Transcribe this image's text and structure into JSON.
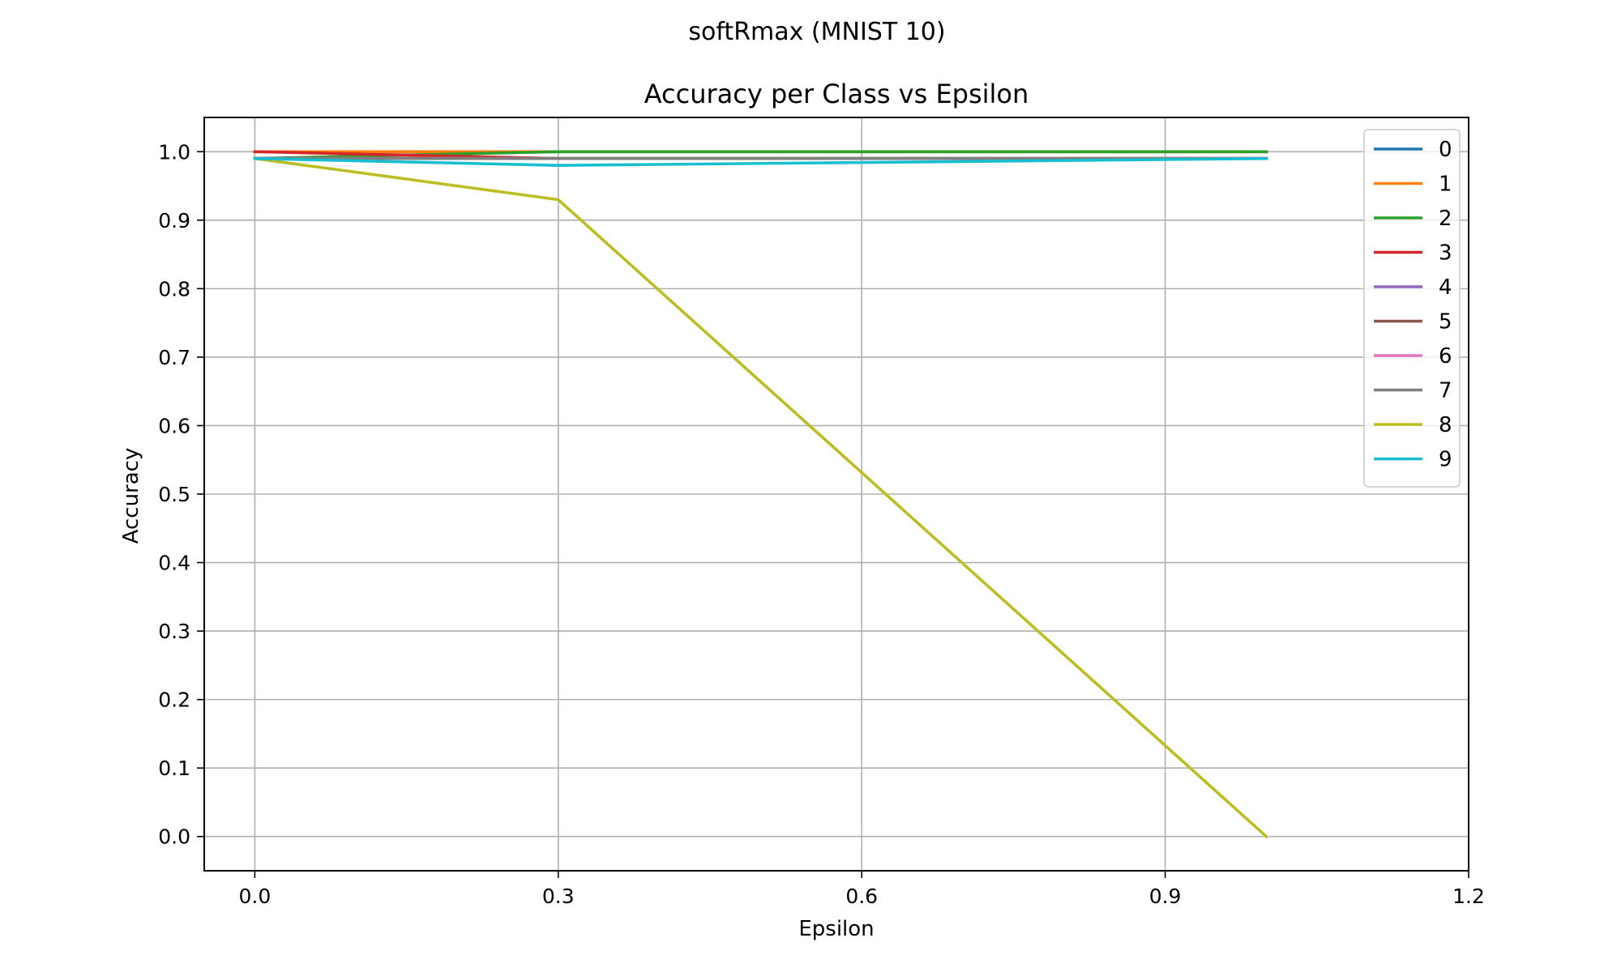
{
  "figure": {
    "suptitle": "softRmax (MNIST 10)"
  },
  "chart_data": {
    "type": "line",
    "title": "Accuracy per Class vs Epsilon",
    "xlabel": "Epsilon",
    "ylabel": "Accuracy",
    "xlim": [
      -0.05,
      1.2
    ],
    "ylim": [
      -0.05,
      1.05
    ],
    "xticks": [
      0.0,
      0.3,
      0.6,
      0.9,
      1.2
    ],
    "xtick_labels": [
      "0.0",
      "0.3",
      "0.6",
      "0.9",
      "1.2"
    ],
    "yticks": [
      0.0,
      0.1,
      0.2,
      0.3,
      0.4,
      0.5,
      0.6,
      0.7,
      0.8,
      0.9,
      1.0
    ],
    "ytick_labels": [
      "0.0",
      "0.1",
      "0.2",
      "0.3",
      "0.4",
      "0.5",
      "0.6",
      "0.7",
      "0.8",
      "0.9",
      "1.0"
    ],
    "grid": true,
    "legend_position": "top-right",
    "x": [
      0.0,
      0.3,
      1.0
    ],
    "series": [
      {
        "name": "0",
        "color": "#1f77b4",
        "values": [
          1.0,
          1.0,
          1.0
        ]
      },
      {
        "name": "1",
        "color": "#ff7f0e",
        "values": [
          1.0,
          1.0,
          1.0
        ]
      },
      {
        "name": "2",
        "color": "#2ca02c",
        "values": [
          0.99,
          1.0,
          1.0
        ]
      },
      {
        "name": "3",
        "color": "#d62728",
        "values": [
          1.0,
          0.99,
          0.99
        ]
      },
      {
        "name": "4",
        "color": "#9467bd",
        "values": [
          0.99,
          0.99,
          0.99
        ]
      },
      {
        "name": "5",
        "color": "#8c564b",
        "values": [
          0.99,
          0.99,
          0.99
        ]
      },
      {
        "name": "6",
        "color": "#e377c2",
        "values": [
          0.99,
          0.99,
          0.99
        ]
      },
      {
        "name": "7",
        "color": "#7f7f7f",
        "values": [
          0.99,
          0.99,
          0.99
        ]
      },
      {
        "name": "8",
        "color": "#bcbd22",
        "values": [
          0.99,
          0.93,
          0.0
        ]
      },
      {
        "name": "9",
        "color": "#17becf",
        "values": [
          0.99,
          0.98,
          0.99
        ]
      }
    ]
  }
}
